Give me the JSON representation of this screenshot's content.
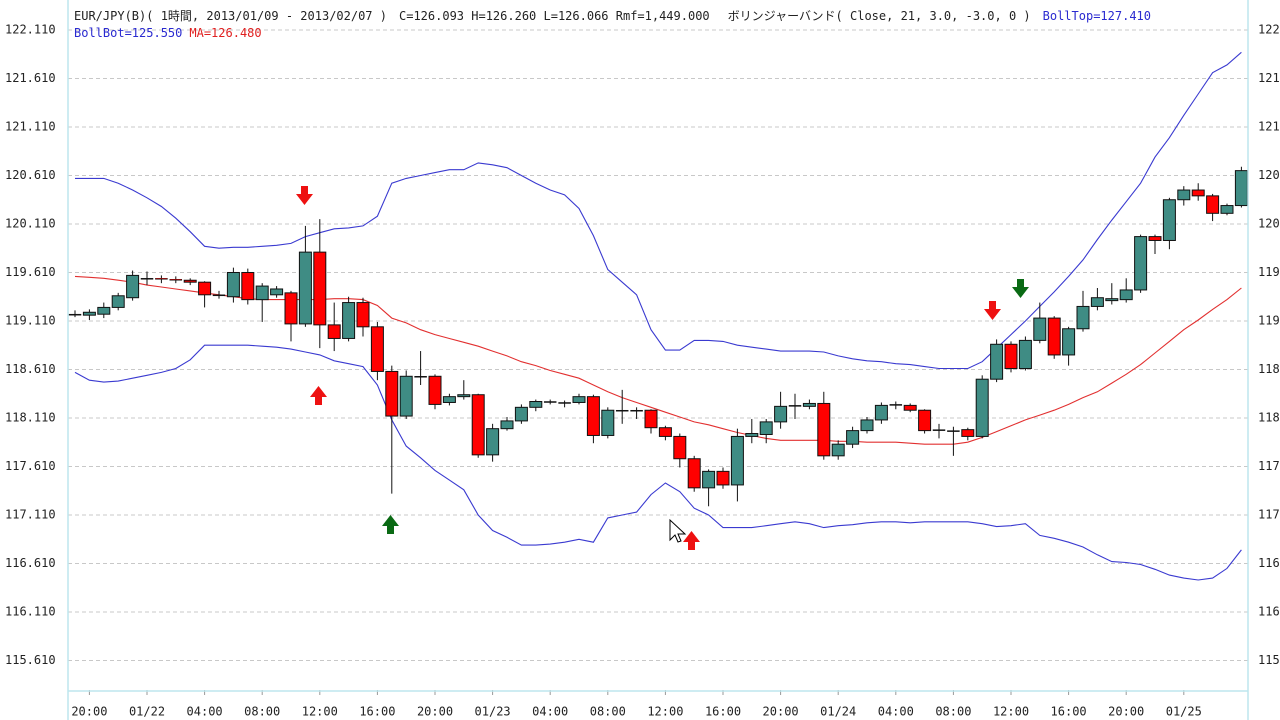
{
  "chart_data": {
    "type": "candlestick",
    "title": "EUR/JPY(B)( 1時間, 2013/01/09 - 2013/02/07 )",
    "quote": "C=126.093 H=126.260 L=126.066 Rmf=1,449.000",
    "indicator": "ボリンジャーバンド( Close, 21, 3.0, -3.0, 0 )",
    "boll_top_label": "BollTop=127.410",
    "boll_bot_label": "BollBot=125.550",
    "ma_label": "MA=126.480",
    "up_color": "#3f8c84",
    "down_color": "#ff0000",
    "grid": true,
    "ylim": [
      115.306,
      122.419
    ],
    "yticks": [
      {
        "value": 122.11,
        "label": "122.110"
      },
      {
        "value": 121.61,
        "label": "121.610"
      },
      {
        "value": 121.11,
        "label": "121.110"
      },
      {
        "value": 120.61,
        "label": "120.610"
      },
      {
        "value": 120.11,
        "label": "120.110"
      },
      {
        "value": 119.61,
        "label": "119.610"
      },
      {
        "value": 119.11,
        "label": "119.110"
      },
      {
        "value": 118.61,
        "label": "118.610"
      },
      {
        "value": 118.11,
        "label": "118.110"
      },
      {
        "value": 117.61,
        "label": "117.610"
      },
      {
        "value": 117.11,
        "label": "117.110"
      },
      {
        "value": 116.61,
        "label": "116.610"
      },
      {
        "value": 116.11,
        "label": "116.110"
      },
      {
        "value": 115.61,
        "label": "115.610"
      }
    ],
    "categories": [
      null,
      "20:00",
      null,
      null,
      null,
      "01/22",
      null,
      null,
      null,
      "04:00",
      null,
      null,
      null,
      "08:00",
      null,
      null,
      null,
      "12:00",
      null,
      null,
      null,
      "16:00",
      null,
      null,
      null,
      "20:00",
      null,
      null,
      null,
      "01/23",
      null,
      null,
      null,
      "04:00",
      null,
      null,
      null,
      "08:00",
      null,
      null,
      null,
      "12:00",
      null,
      null,
      null,
      "16:00",
      null,
      null,
      null,
      "20:00",
      null,
      null,
      null,
      "01/24",
      null,
      null,
      null,
      "04:00",
      null,
      null,
      null,
      "08:00",
      null,
      null,
      null,
      "12:00",
      null,
      null,
      null,
      "16:00",
      null,
      null,
      null,
      "20:00",
      null,
      null,
      null,
      "01/25",
      null,
      null,
      null,
      null
    ],
    "open": [
      119.18,
      119.17,
      119.18,
      119.25,
      119.35,
      119.55,
      119.55,
      119.54,
      119.53,
      119.51,
      119.38,
      119.36,
      119.61,
      119.33,
      119.38,
      119.4,
      119.08,
      119.82,
      119.07,
      118.93,
      119.3,
      119.05,
      118.59,
      118.13,
      118.54,
      118.54,
      118.27,
      118.33,
      118.35,
      117.73,
      118.0,
      118.08,
      118.22,
      118.28,
      118.27,
      118.27,
      118.33,
      117.93,
      118.19,
      118.19,
      118.19,
      118.01,
      117.92,
      117.69,
      117.39,
      117.56,
      117.42,
      117.92,
      117.94,
      118.07,
      118.24,
      118.23,
      118.26,
      117.72,
      117.84,
      117.98,
      118.09,
      118.25,
      118.24,
      118.19,
      117.99,
      117.98,
      117.99,
      117.92,
      118.51,
      118.87,
      118.62,
      118.91,
      119.14,
      118.76,
      119.03,
      119.26,
      119.32,
      119.33,
      119.43,
      119.98,
      119.94,
      120.36,
      120.46,
      120.4,
      120.22,
      120.3
    ],
    "high": [
      119.22,
      119.23,
      119.3,
      119.4,
      119.63,
      119.62,
      119.58,
      119.57,
      119.55,
      119.52,
      119.42,
      119.66,
      119.65,
      119.5,
      119.47,
      119.42,
      120.09,
      120.16,
      119.3,
      119.36,
      119.35,
      119.1,
      118.65,
      118.6,
      118.8,
      118.56,
      118.36,
      118.5,
      118.36,
      118.05,
      118.12,
      118.25,
      118.3,
      118.3,
      118.29,
      118.36,
      118.35,
      118.22,
      118.4,
      118.22,
      118.2,
      118.03,
      117.95,
      117.72,
      117.58,
      117.6,
      118.0,
      118.1,
      118.1,
      118.38,
      118.36,
      118.3,
      118.38,
      117.88,
      118.02,
      118.12,
      118.27,
      118.28,
      118.26,
      118.2,
      118.05,
      118.02,
      118.01,
      118.55,
      118.92,
      118.9,
      118.95,
      119.3,
      119.16,
      119.05,
      119.42,
      119.45,
      119.5,
      119.55,
      120.0,
      120.0,
      120.38,
      120.5,
      120.53,
      120.42,
      120.32,
      120.7
    ],
    "low": [
      119.15,
      119.12,
      119.14,
      119.22,
      119.32,
      119.48,
      119.5,
      119.5,
      119.48,
      119.25,
      119.34,
      119.3,
      119.28,
      119.1,
      119.35,
      118.9,
      119.05,
      118.83,
      118.8,
      118.9,
      118.95,
      118.5,
      117.33,
      118.1,
      118.45,
      118.2,
      118.24,
      118.3,
      117.7,
      117.66,
      117.98,
      118.05,
      118.18,
      118.25,
      118.22,
      118.25,
      117.85,
      117.9,
      118.05,
      118.1,
      117.95,
      117.88,
      117.6,
      117.35,
      117.2,
      117.38,
      117.25,
      117.85,
      117.85,
      118.0,
      118.1,
      118.2,
      117.68,
      117.68,
      117.8,
      117.95,
      118.05,
      118.2,
      118.17,
      117.95,
      117.9,
      117.72,
      117.88,
      117.9,
      118.48,
      118.58,
      118.6,
      118.88,
      118.72,
      118.65,
      119.0,
      119.22,
      119.28,
      119.3,
      119.4,
      119.8,
      119.85,
      120.3,
      120.35,
      120.14,
      120.2,
      120.28
    ],
    "close": [
      119.18,
      119.2,
      119.25,
      119.37,
      119.58,
      119.55,
      119.54,
      119.53,
      119.51,
      119.38,
      119.38,
      119.61,
      119.33,
      119.47,
      119.44,
      119.08,
      119.82,
      119.07,
      118.93,
      119.3,
      119.05,
      118.59,
      118.13,
      118.54,
      118.54,
      118.25,
      118.33,
      118.35,
      117.73,
      118.0,
      118.08,
      118.22,
      118.28,
      118.28,
      118.27,
      118.33,
      117.93,
      118.19,
      118.19,
      118.19,
      118.01,
      117.92,
      117.69,
      117.39,
      117.56,
      117.42,
      117.92,
      117.95,
      118.07,
      118.23,
      118.24,
      118.26,
      117.72,
      117.84,
      117.98,
      118.09,
      118.24,
      118.25,
      118.19,
      117.98,
      117.99,
      117.98,
      117.92,
      118.51,
      118.87,
      118.62,
      118.91,
      119.14,
      118.76,
      119.03,
      119.26,
      119.35,
      119.34,
      119.43,
      119.98,
      119.94,
      120.36,
      120.46,
      120.4,
      120.22,
      120.3,
      120.66
    ],
    "overlays": [
      {
        "color": "#3a3ad0",
        "values": [
          120.58,
          120.58,
          120.58,
          120.53,
          120.46,
          120.38,
          120.29,
          120.17,
          120.03,
          119.88,
          119.86,
          119.87,
          119.87,
          119.88,
          119.89,
          119.91,
          119.98,
          120.02,
          120.06,
          120.07,
          120.09,
          120.19,
          120.53,
          120.58,
          120.61,
          120.64,
          120.67,
          120.67,
          120.74,
          120.72,
          120.69,
          120.61,
          120.53,
          120.46,
          120.41,
          120.27,
          119.99,
          119.64,
          119.51,
          119.38,
          119.02,
          118.81,
          118.81,
          118.91,
          118.91,
          118.9,
          118.86,
          118.84,
          118.82,
          118.8,
          118.8,
          118.8,
          118.79,
          118.75,
          118.72,
          118.7,
          118.69,
          118.67,
          118.66,
          118.64,
          118.62,
          118.62,
          118.62,
          118.69,
          118.83,
          118.97,
          119.11,
          119.26,
          119.41,
          119.57,
          119.74,
          119.95,
          120.15,
          120.34,
          120.53,
          120.8,
          121.0,
          121.23,
          121.45,
          121.67,
          121.75,
          121.88
        ]
      },
      {
        "color": "#3a3ad0",
        "values": [
          118.58,
          118.5,
          118.48,
          118.49,
          118.52,
          118.55,
          118.58,
          118.62,
          118.71,
          118.86,
          118.86,
          118.86,
          118.86,
          118.85,
          118.84,
          118.82,
          118.79,
          118.76,
          118.7,
          118.67,
          118.64,
          118.45,
          118.09,
          117.82,
          117.7,
          117.57,
          117.47,
          117.37,
          117.11,
          116.95,
          116.88,
          116.8,
          116.8,
          116.81,
          116.83,
          116.86,
          116.83,
          117.08,
          117.11,
          117.14,
          117.32,
          117.44,
          117.35,
          117.18,
          117.11,
          116.98,
          116.98,
          116.98,
          117.0,
          117.02,
          117.04,
          117.02,
          116.98,
          117.0,
          117.01,
          117.03,
          117.04,
          117.04,
          117.03,
          117.04,
          117.04,
          117.04,
          117.04,
          117.02,
          116.99,
          117.0,
          117.02,
          116.9,
          116.87,
          116.83,
          116.78,
          116.7,
          116.63,
          116.62,
          116.6,
          116.55,
          116.49,
          116.46,
          116.44,
          116.46,
          116.56,
          116.75
        ]
      },
      {
        "color": "#e23030",
        "values": [
          119.57,
          119.56,
          119.55,
          119.53,
          119.51,
          119.48,
          119.46,
          119.44,
          119.42,
          119.4,
          119.38,
          119.36,
          119.34,
          119.33,
          119.33,
          119.33,
          119.33,
          119.33,
          119.34,
          119.34,
          119.33,
          119.27,
          119.14,
          119.09,
          119.02,
          118.97,
          118.93,
          118.89,
          118.85,
          118.8,
          118.75,
          118.69,
          118.65,
          118.6,
          118.56,
          118.52,
          118.45,
          118.38,
          118.32,
          118.27,
          118.22,
          118.17,
          118.12,
          118.07,
          118.04,
          118.0,
          117.96,
          117.93,
          117.9,
          117.88,
          117.88,
          117.88,
          117.88,
          117.87,
          117.87,
          117.86,
          117.86,
          117.86,
          117.85,
          117.84,
          117.84,
          117.84,
          117.86,
          117.91,
          117.97,
          118.03,
          118.09,
          118.14,
          118.19,
          118.25,
          118.32,
          118.38,
          118.47,
          118.56,
          118.66,
          118.78,
          118.9,
          119.02,
          119.12,
          119.23,
          119.33,
          119.45
        ]
      }
    ]
  }
}
